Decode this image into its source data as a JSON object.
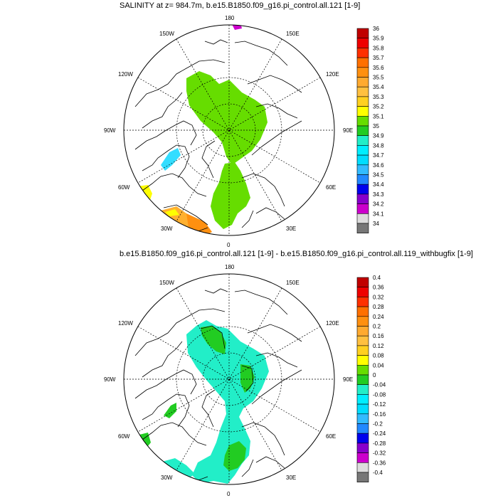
{
  "panel1": {
    "title": "SALINITY at z= 984.7m, b.e15.B1850.f09_g16.pi_control.all.121 [1-9]",
    "lon_labels": {
      "n180": "180",
      "w150": "150W",
      "e150": "150E",
      "w120": "120W",
      "e120": "120E",
      "w90": "90W",
      "e90": "90E",
      "w60": "60W",
      "e60": "60E",
      "w30": "30W",
      "e30": "30E",
      "zero": "0"
    },
    "colorbar": {
      "labels": [
        "36",
        "35.9",
        "35.8",
        "35.7",
        "35.6",
        "35.5",
        "35.4",
        "35.3",
        "35.2",
        "35.1",
        "35",
        "34.9",
        "34.8",
        "34.7",
        "34.6",
        "34.5",
        "34.4",
        "34.3",
        "34.2",
        "34.1",
        "34"
      ],
      "colors": [
        "#c00000",
        "#ee0000",
        "#ff3000",
        "#ff7000",
        "#ff9010",
        "#ffaa30",
        "#ffc040",
        "#ffd020",
        "#ffff00",
        "#66dd00",
        "#22cc22",
        "#22eec8",
        "#00eeff",
        "#00ddff",
        "#33bbff",
        "#2288ff",
        "#0000ee",
        "#8800cc",
        "#cc00cc",
        "#dddddd",
        "#777777"
      ]
    }
  },
  "panel2": {
    "title": "b.e15.B1850.f09_g16.pi_control.all.121 [1-9] - b.e15.B1850.f09_g16.pi_control.all.119_withbugfix [1-9]",
    "lon_labels": {
      "n180": "180",
      "w150": "150W",
      "e150": "150E",
      "w120": "120W",
      "e120": "120E",
      "w90": "90W",
      "e90": "90E",
      "w60": "60W",
      "e60": "60E",
      "w30": "30W",
      "e30": "30E",
      "zero": "0"
    },
    "colorbar": {
      "labels": [
        "0.4",
        "0.36",
        "0.32",
        "0.28",
        "0.24",
        "0.2",
        "0.16",
        "0.12",
        "0.08",
        "0.04",
        "0",
        "-0.04",
        "-0.08",
        "-0.12",
        "-0.16",
        "-0.2",
        "-0.24",
        "-0.28",
        "-0.32",
        "-0.36",
        "-0.4"
      ],
      "colors": [
        "#c00000",
        "#ee0000",
        "#ff3000",
        "#ff7000",
        "#ff9010",
        "#ffaa30",
        "#ffc040",
        "#ffd020",
        "#ffff00",
        "#66dd00",
        "#22cc22",
        "#22eec8",
        "#00eeff",
        "#00ddff",
        "#33bbff",
        "#2288ff",
        "#0000ee",
        "#8800cc",
        "#cc00cc",
        "#dddddd",
        "#777777"
      ]
    }
  }
}
